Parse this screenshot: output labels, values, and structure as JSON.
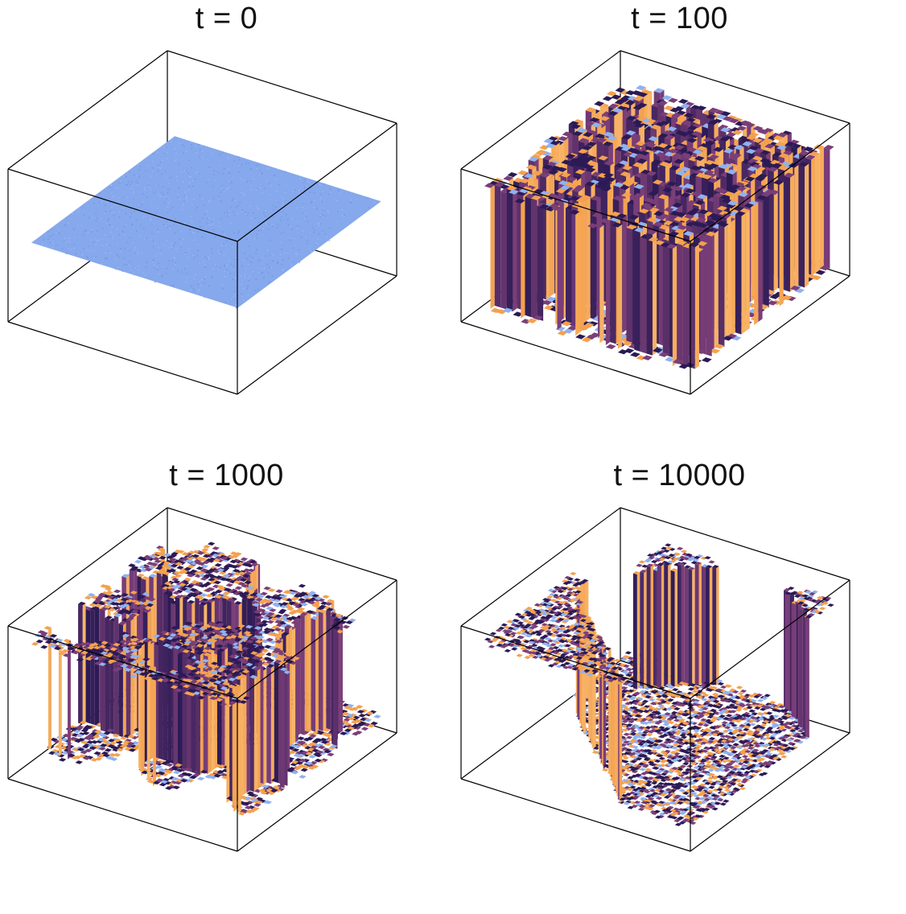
{
  "panels": [
    {
      "title": "t = 0",
      "state": "flat"
    },
    {
      "title": "t = 100",
      "state": "fine-random"
    },
    {
      "title": "t = 1000",
      "state": "domains-medium"
    },
    {
      "title": "t = 10000",
      "state": "domains-coarse"
    }
  ],
  "colors": {
    "flat_surface": "#86a8ec",
    "dark": "#2b1a55",
    "mid": "#7a3e78",
    "orange": "#f4a14e",
    "light_orange": "#fbc27a",
    "blue_speck": "#8fb2f0",
    "box_line": "#000000"
  }
}
